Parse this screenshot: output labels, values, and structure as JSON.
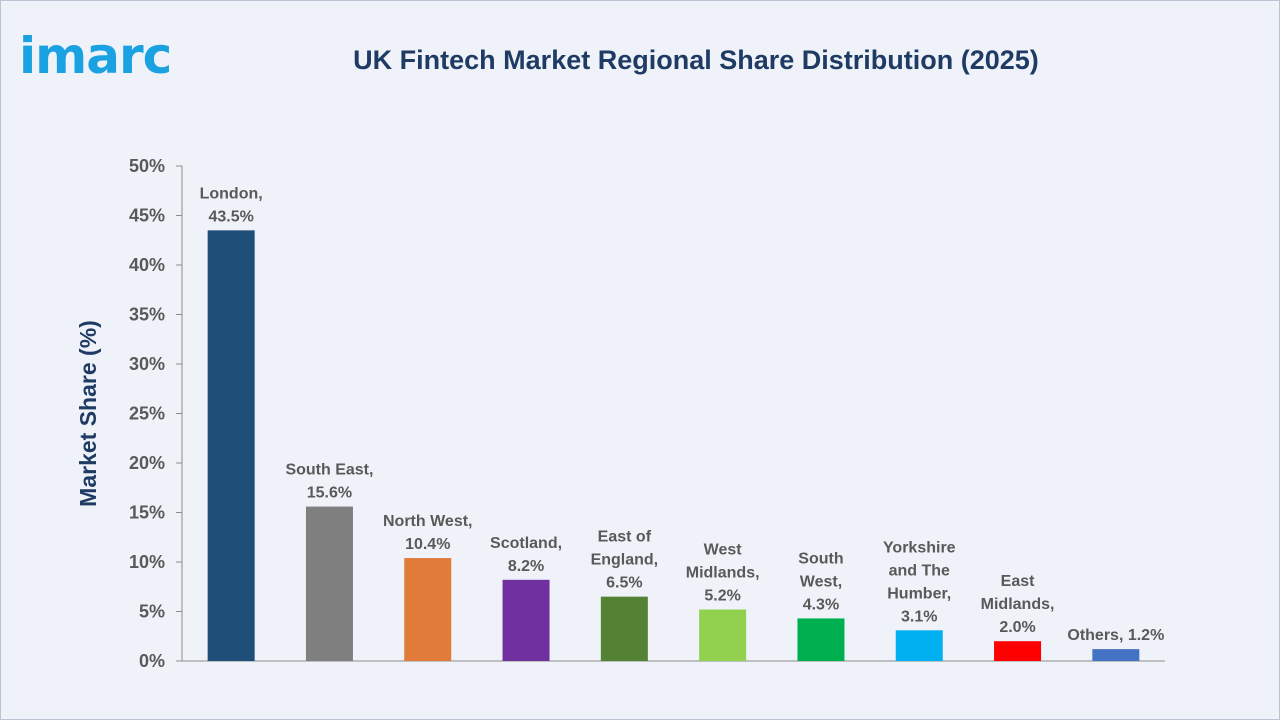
{
  "logo_text": "imarc",
  "chart_data": {
    "type": "bar",
    "title": "UK Fintech Market Regional Share Distribution (2025)",
    "ylabel": "Market Share (%)",
    "xlabel": "",
    "ylim": [
      0,
      50
    ],
    "yticks": [
      0,
      5,
      10,
      15,
      20,
      25,
      30,
      35,
      40,
      45,
      50
    ],
    "ytick_labels": [
      "0%",
      "5%",
      "10%",
      "15%",
      "20%",
      "25%",
      "30%",
      "35%",
      "40%",
      "45%",
      "50%"
    ],
    "grid": false,
    "categories": [
      "London",
      "South East",
      "North West",
      "Scotland",
      "East of England",
      "West Midlands",
      "South West",
      "Yorkshire and The Humber",
      "East Midlands",
      "Others"
    ],
    "values": [
      43.5,
      15.6,
      10.4,
      8.2,
      6.5,
      5.2,
      4.3,
      3.1,
      2.0,
      1.2
    ],
    "data_labels": [
      [
        "London,",
        "43.5%"
      ],
      [
        "South East,",
        "15.6%"
      ],
      [
        "North West,",
        "10.4%"
      ],
      [
        "Scotland,",
        "8.2%"
      ],
      [
        "East of",
        "England,",
        "6.5%"
      ],
      [
        "West",
        "Midlands,",
        "5.2%"
      ],
      [
        "South",
        "West,",
        "4.3%"
      ],
      [
        "Yorkshire",
        "and The",
        "Humber,",
        "3.1%"
      ],
      [
        "East",
        "Midlands,",
        "2.0%"
      ],
      [
        "Others, 1.2%"
      ]
    ],
    "colors": [
      "#1f4e79",
      "#7f7f7f",
      "#e07b39",
      "#7030a0",
      "#548235",
      "#92d050",
      "#00b050",
      "#00b0f0",
      "#ff0000",
      "#4472c4"
    ]
  }
}
